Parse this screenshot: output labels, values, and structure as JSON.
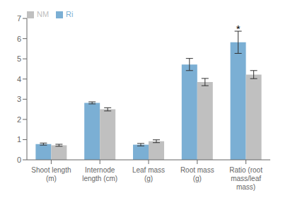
{
  "chart_data": {
    "type": "bar",
    "categories": [
      "Shoot length\n(m)",
      "Internode\nlength (cm)",
      "Leaf mass\n(g)",
      "Root mass\n(g)",
      "Ratio (root\nmass/leaf\nmass)"
    ],
    "series": [
      {
        "name": "Ri",
        "color": "#7BAFD4",
        "values": [
          0.78,
          2.82,
          0.75,
          4.72,
          5.82
        ],
        "errors": [
          0.05,
          0.05,
          0.06,
          0.3,
          0.55
        ]
      },
      {
        "name": "NM",
        "color": "#C0C0C0",
        "values": [
          0.72,
          2.5,
          0.92,
          3.85,
          4.22
        ],
        "errors": [
          0.05,
          0.08,
          0.07,
          0.18,
          0.2
        ]
      }
    ],
    "ylim": [
      0,
      7
    ],
    "yticks": [
      0,
      1,
      2,
      3,
      4,
      5,
      6,
      7
    ],
    "grid": false,
    "legend": "upper left",
    "annotations": [
      {
        "text": "*",
        "series": "Ri",
        "category": "Ratio (root\nmass/leaf\nmass)"
      }
    ]
  }
}
